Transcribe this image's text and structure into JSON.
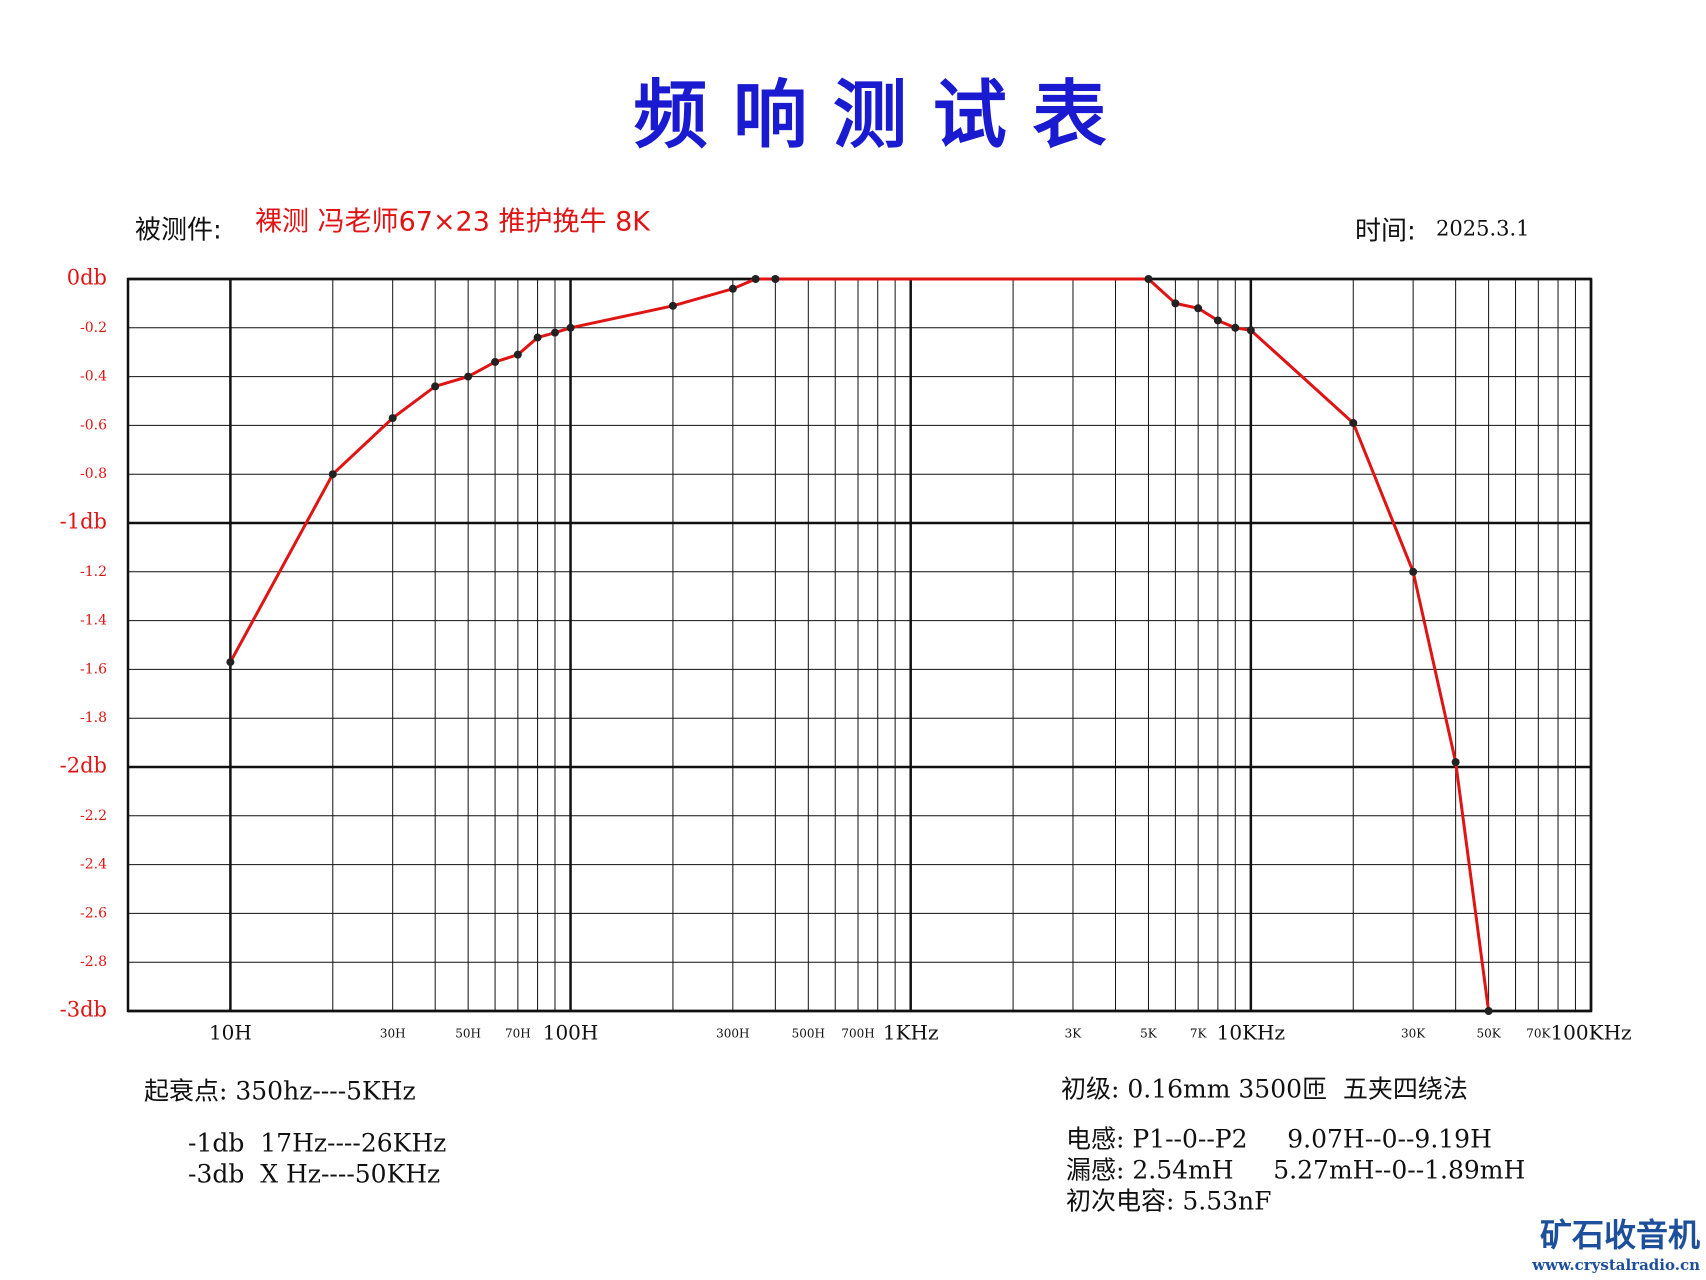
{
  "chart_data": {
    "type": "line",
    "title": "频 响 测 试 表",
    "subject_label": "被测件:",
    "subject": "裸测 冯老师67×23 推护挽牛 8K",
    "time_label": "时间:",
    "time": "2025.3.1",
    "log_x": true,
    "grid": true,
    "xlim": [
      5,
      100000
    ],
    "ylim": [
      -3,
      0
    ],
    "xticks": [
      {
        "value": 10,
        "label": "10H"
      },
      {
        "value": 20,
        "label": null
      },
      {
        "value": 30,
        "label": "30H"
      },
      {
        "value": 40,
        "label": null
      },
      {
        "value": 50,
        "label": "50H"
      },
      {
        "value": 60,
        "label": null
      },
      {
        "value": 70,
        "label": "70H"
      },
      {
        "value": 80,
        "label": null
      },
      {
        "value": 90,
        "label": null
      },
      {
        "value": 100,
        "label": "100H"
      },
      {
        "value": 200,
        "label": null
      },
      {
        "value": 300,
        "label": "300H"
      },
      {
        "value": 400,
        "label": null
      },
      {
        "value": 500,
        "label": "500H"
      },
      {
        "value": 600,
        "label": null
      },
      {
        "value": 700,
        "label": "700H"
      },
      {
        "value": 800,
        "label": null
      },
      {
        "value": 900,
        "label": null
      },
      {
        "value": 1000,
        "label": "1KHz"
      },
      {
        "value": 2000,
        "label": null
      },
      {
        "value": 3000,
        "label": "3K"
      },
      {
        "value": 4000,
        "label": null
      },
      {
        "value": 5000,
        "label": "5K"
      },
      {
        "value": 6000,
        "label": null
      },
      {
        "value": 7000,
        "label": "7K"
      },
      {
        "value": 8000,
        "label": null
      },
      {
        "value": 9000,
        "label": null
      },
      {
        "value": 10000,
        "label": "10KHz"
      },
      {
        "value": 20000,
        "label": null
      },
      {
        "value": 30000,
        "label": "30K"
      },
      {
        "value": 40000,
        "label": null
      },
      {
        "value": 50000,
        "label": "50K"
      },
      {
        "value": 60000,
        "label": null
      },
      {
        "value": 70000,
        "label": "70K"
      },
      {
        "value": 80000,
        "label": null
      },
      {
        "value": 90000,
        "label": null
      },
      {
        "value": 100000,
        "label": "100KHz"
      }
    ],
    "yticks": [
      {
        "value": 0,
        "label": "0db"
      },
      -0.2,
      -0.4,
      -0.6,
      -0.8,
      {
        "value": -1,
        "label": "-1db"
      },
      -1.2,
      -1.4,
      -1.6,
      -1.8,
      {
        "value": -2,
        "label": "-2db"
      },
      -2.2,
      -2.4,
      -2.6,
      -2.8,
      {
        "value": -3,
        "label": "-3db"
      }
    ],
    "x": [
      10,
      20,
      30,
      40,
      50,
      60,
      70,
      80,
      90,
      100,
      200,
      300,
      350,
      400,
      5000,
      6000,
      7000,
      8000,
      9000,
      10000,
      20000,
      30000,
      40000,
      50000
    ],
    "series": [
      {
        "color": "#e01414",
        "values": [
          -1.57,
          -0.8,
          -0.57,
          -0.44,
          -0.4,
          -0.34,
          -0.31,
          -0.24,
          -0.22,
          -0.2,
          -0.11,
          -0.04,
          0,
          0,
          0,
          -0.1,
          -0.12,
          -0.17,
          -0.2,
          -0.21,
          -0.59,
          -1.2,
          -1.98,
          -3
        ]
      }
    ]
  },
  "notes": {
    "left": [
      "起衰点: 350hz----5KHz",
      "-1db  17Hz----26KHz",
      "-3db  X Hz----50KHz"
    ],
    "right": [
      "初级: 0.16mm 3500匝  五夹四绕法",
      "电感: P1--0--P2     9.07H--0--9.19H",
      "漏感: 2.54mH     5.27mH--0--1.89mH",
      "初次电容: 5.53nF"
    ]
  },
  "watermark": {
    "name": "矿石收音机",
    "url": "www.crystalradio.cn"
  }
}
